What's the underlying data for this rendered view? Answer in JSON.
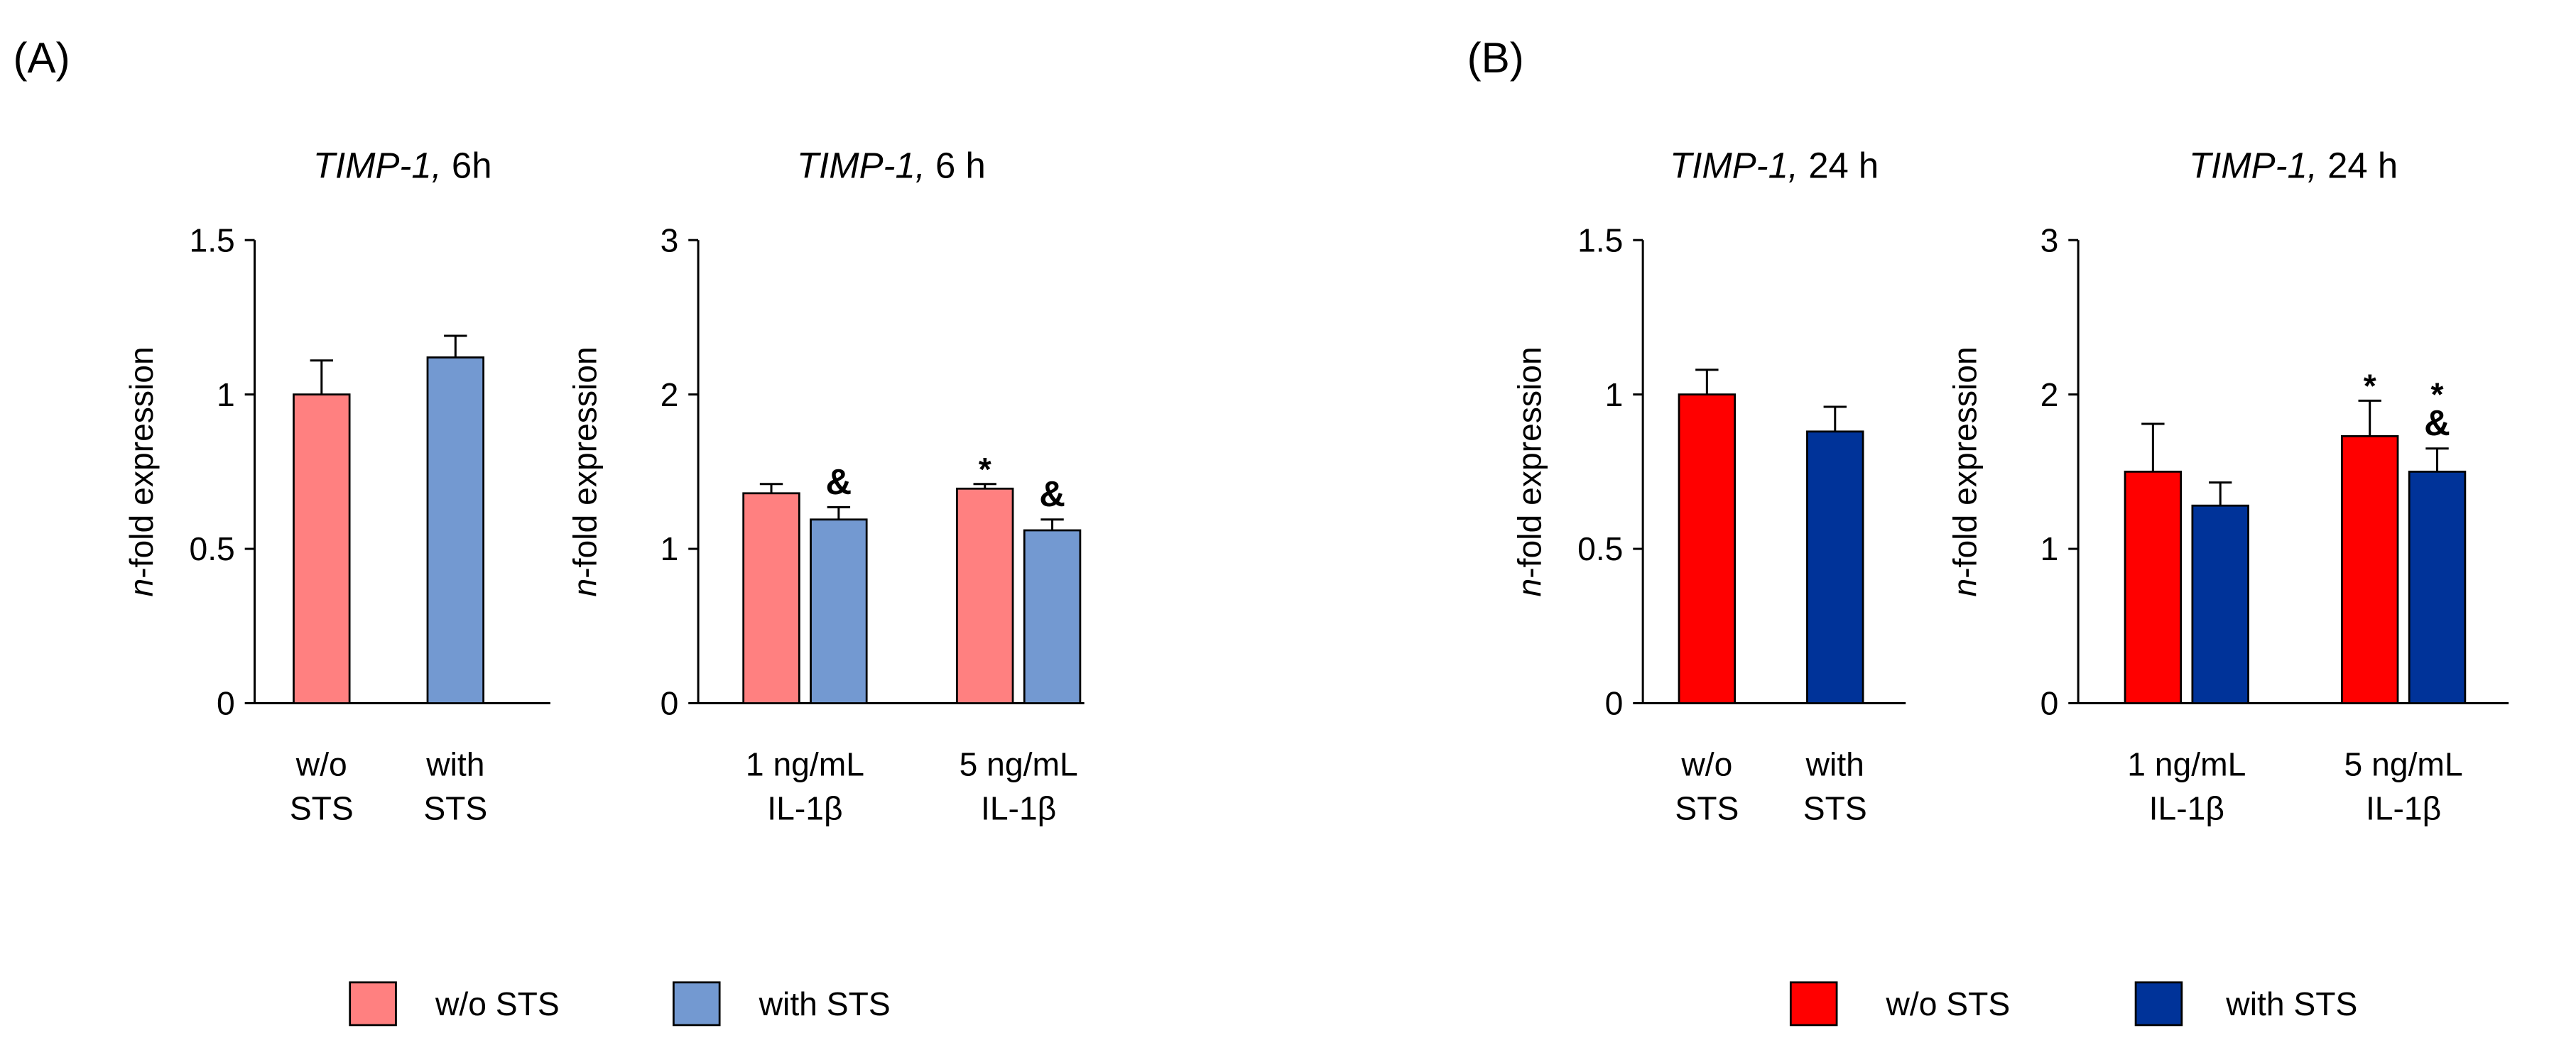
{
  "panel_labels": [
    "(A)",
    "(B)"
  ],
  "legends": [
    {
      "entries": [
        {
          "name": "w/o STS",
          "color": "#ff8080"
        },
        {
          "name": "with STS",
          "color": "#7399d1"
        }
      ]
    },
    {
      "entries": [
        {
          "name": "w/o STS",
          "color": "#ff0000"
        },
        {
          "name": "with STS",
          "color": "#003399"
        }
      ]
    }
  ],
  "chart_data": [
    {
      "type": "bar",
      "title": "TIMP-1, 6h",
      "y_label": "n-fold expression",
      "categories": [
        "w/o\nSTS",
        "with\nSTS"
      ],
      "values": [
        1.0,
        1.12
      ],
      "errors": [
        0.11,
        0.07
      ],
      "colors": [
        "#ff8080",
        "#7399d1"
      ],
      "ylim": [
        0,
        1.5
      ],
      "yticks": [
        0,
        0.5,
        1,
        1.5
      ]
    },
    {
      "type": "grouped_bar",
      "title": "TIMP-1, 6 h",
      "y_label": "n-fold expression",
      "categories": [
        "1 ng/mL\nIL-1β",
        "5 ng/mL\nIL-1β"
      ],
      "series": [
        {
          "name": "w/o STS",
          "color": "#ff8080",
          "values": [
            1.36,
            1.39
          ],
          "errors": [
            0.06,
            0.03
          ],
          "annotations": [
            null,
            [
              "*"
            ]
          ]
        },
        {
          "name": "with STS",
          "color": "#7399d1",
          "values": [
            1.19,
            1.12
          ],
          "errors": [
            0.08,
            0.07
          ],
          "annotations": [
            [
              "&"
            ],
            [
              "&"
            ]
          ]
        }
      ],
      "ylim": [
        0,
        3
      ],
      "yticks": [
        0,
        1,
        2,
        3
      ]
    },
    {
      "type": "bar",
      "title": "TIMP-1, 24 h",
      "y_label": "n-fold expression",
      "categories": [
        "w/o\nSTS",
        "with\nSTS"
      ],
      "values": [
        1.0,
        0.88
      ],
      "errors": [
        0.08,
        0.08
      ],
      "colors": [
        "#ff0000",
        "#003399"
      ],
      "ylim": [
        0,
        1.5
      ],
      "yticks": [
        0,
        0.5,
        1,
        1.5
      ]
    },
    {
      "type": "grouped_bar",
      "title": "TIMP-1, 24 h",
      "y_label": "n-fold expression",
      "categories": [
        "1 ng/mL\nIL-1β",
        "5 ng/mL\nIL-1β"
      ],
      "series": [
        {
          "name": "w/o STS",
          "color": "#ff0000",
          "values": [
            1.5,
            1.73
          ],
          "errors": [
            0.31,
            0.23
          ],
          "annotations": [
            null,
            [
              "*"
            ]
          ]
        },
        {
          "name": "with STS",
          "color": "#003399",
          "values": [
            1.28,
            1.5
          ],
          "errors": [
            0.15,
            0.15
          ],
          "annotations": [
            null,
            [
              "*",
              "&"
            ]
          ]
        }
      ],
      "ylim": [
        0,
        3
      ],
      "yticks": [
        0,
        1,
        2,
        3
      ]
    }
  ]
}
